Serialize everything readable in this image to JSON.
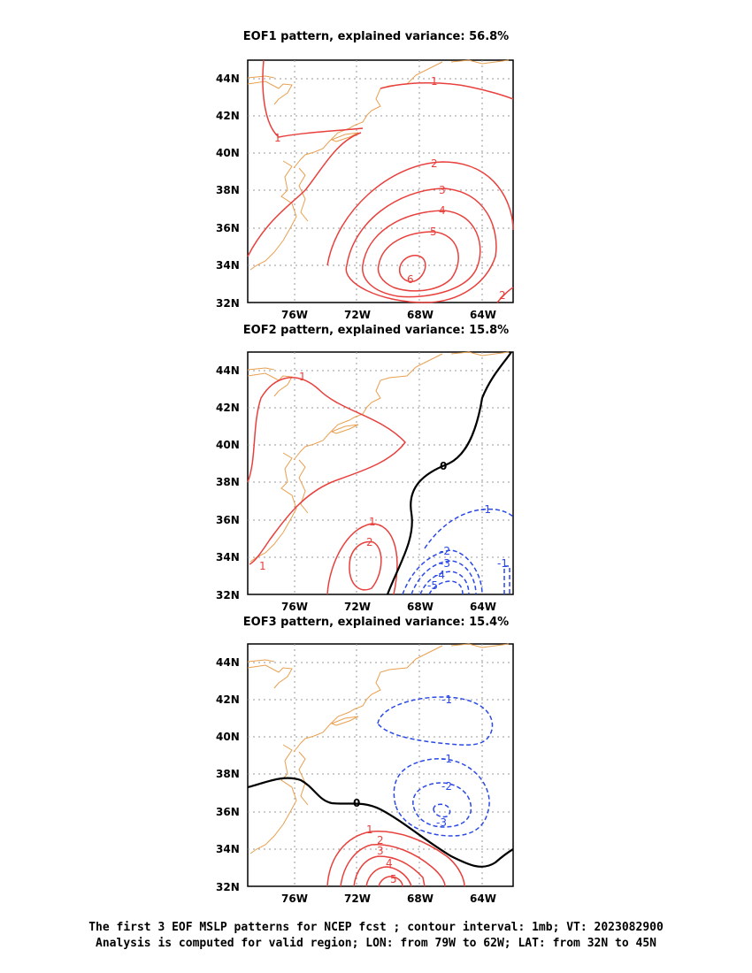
{
  "panels": [
    {
      "title": "EOF1 pattern, explained variance: 56.8%"
    },
    {
      "title": "EOF2 pattern, explained variance: 15.8%"
    },
    {
      "title": "EOF3 pattern, explained variance: 15.4%"
    }
  ],
  "axes": {
    "lat_ticks": [
      "44N",
      "42N",
      "40N",
      "38N",
      "36N",
      "34N",
      "32N"
    ],
    "lon_ticks": [
      "76W",
      "72W",
      "68W",
      "64W"
    ]
  },
  "contour_labels": {
    "eof1": [
      "1",
      "1",
      "2",
      "3",
      "4",
      "5",
      "6",
      "2"
    ],
    "eof2": [
      "1",
      "1",
      "1",
      "2",
      "0",
      "-1",
      "-2",
      "-3",
      "-4",
      "-5",
      "-1"
    ],
    "eof3": [
      "-1",
      "-1",
      "-2",
      "-3",
      "0",
      "1",
      "2",
      "3",
      "4",
      "5"
    ]
  },
  "colors": {
    "positive": "#e8403c",
    "negative": "#2a49e6",
    "zero": "#000000",
    "coastline": "#e8a050",
    "grid": "#999999"
  },
  "footer": {
    "line1": "The first 3 EOF MSLP patterns for NCEP fcst ; contour interval: 1mb; VT: 2023082900",
    "line2": "Analysis is computed for valid region; LON: from 79W to 62W; LAT: from 32N to 45N"
  }
}
